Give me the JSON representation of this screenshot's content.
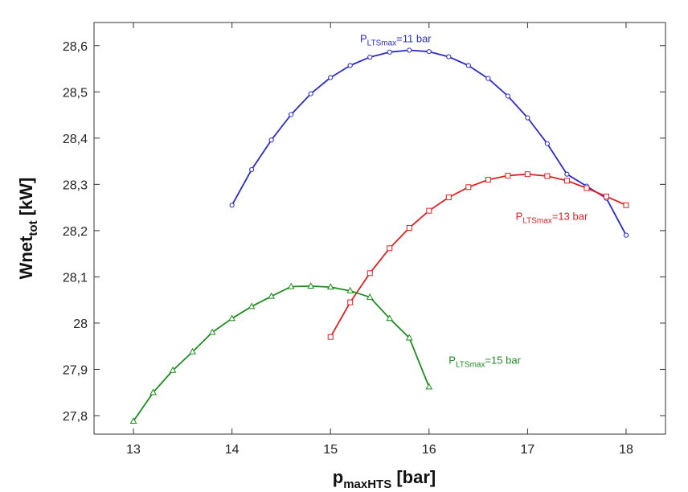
{
  "chart_data": {
    "type": "line",
    "xlabel": {
      "main": "p",
      "sub": "maxHTS",
      "unit": " [bar]"
    },
    "ylabel": {
      "main": "Wnet",
      "sub": "tot",
      "unit": "  [kW]"
    },
    "xlim": [
      12.6,
      18.4
    ],
    "ylim": [
      27.76,
      28.65
    ],
    "x_ticks": [
      13,
      14,
      15,
      16,
      17,
      18
    ],
    "x_tick_labels": [
      "13",
      "14",
      "15",
      "16",
      "17",
      "18"
    ],
    "y_ticks": [
      27.8,
      27.9,
      28.0,
      28.1,
      28.2,
      28.3,
      28.4,
      28.5,
      28.6
    ],
    "y_tick_labels": [
      "27,8",
      "27,9",
      "28",
      "28,1",
      "28,2",
      "28,3",
      "28,4",
      "28,5",
      "28,6"
    ],
    "grid": false,
    "series": [
      {
        "color": "#2b2bc8",
        "marker": "circle",
        "x": [
          14.0,
          14.2,
          14.4,
          14.6,
          14.8,
          15.0,
          15.2,
          15.4,
          15.6,
          15.8,
          16.0,
          16.2,
          16.4,
          16.6,
          16.8,
          17.0,
          17.2,
          17.4,
          17.6,
          17.8,
          18.0
        ],
        "y": [
          28.255,
          28.332,
          28.396,
          28.451,
          28.496,
          28.531,
          28.557,
          28.575,
          28.586,
          28.59,
          28.587,
          28.576,
          28.557,
          28.529,
          28.491,
          28.444,
          28.388,
          28.322,
          28.296,
          28.27,
          28.19
        ],
        "annotation": {
          "main": "P",
          "sub": "LTSmax",
          "rest": "=11 bar",
          "x": 15.3,
          "y": 28.607
        }
      },
      {
        "color": "#dd2222",
        "marker": "square",
        "x": [
          15.0,
          15.2,
          15.4,
          15.6,
          15.8,
          16.0,
          16.2,
          16.4,
          16.6,
          16.8,
          17.0,
          17.2,
          17.4,
          17.6,
          17.8,
          18.0
        ],
        "y": [
          27.97,
          28.045,
          28.108,
          28.162,
          28.206,
          28.243,
          28.272,
          28.294,
          28.31,
          28.319,
          28.322,
          28.318,
          28.308,
          28.292,
          28.274,
          28.255
        ],
        "annotation": {
          "main": "P",
          "sub": "LTSmax",
          "rest": "=13 bar",
          "x": 16.88,
          "y": 28.223
        }
      },
      {
        "color": "#1e8c1e",
        "marker": "triangle",
        "x": [
          13.0,
          13.2,
          13.4,
          13.6,
          13.8,
          14.0,
          14.2,
          14.4,
          14.6,
          14.8,
          15.0,
          15.2,
          15.4,
          15.6,
          15.8,
          16.0
        ],
        "y": [
          27.788,
          27.85,
          27.898,
          27.938,
          27.98,
          28.01,
          28.036,
          28.058,
          28.079,
          28.08,
          28.078,
          28.07,
          28.056,
          28.01,
          27.968,
          27.862
        ],
        "annotation": {
          "main": "P",
          "sub": "LTSmax",
          "rest": "=15 bar",
          "x": 16.2,
          "y": 27.912
        }
      }
    ]
  }
}
